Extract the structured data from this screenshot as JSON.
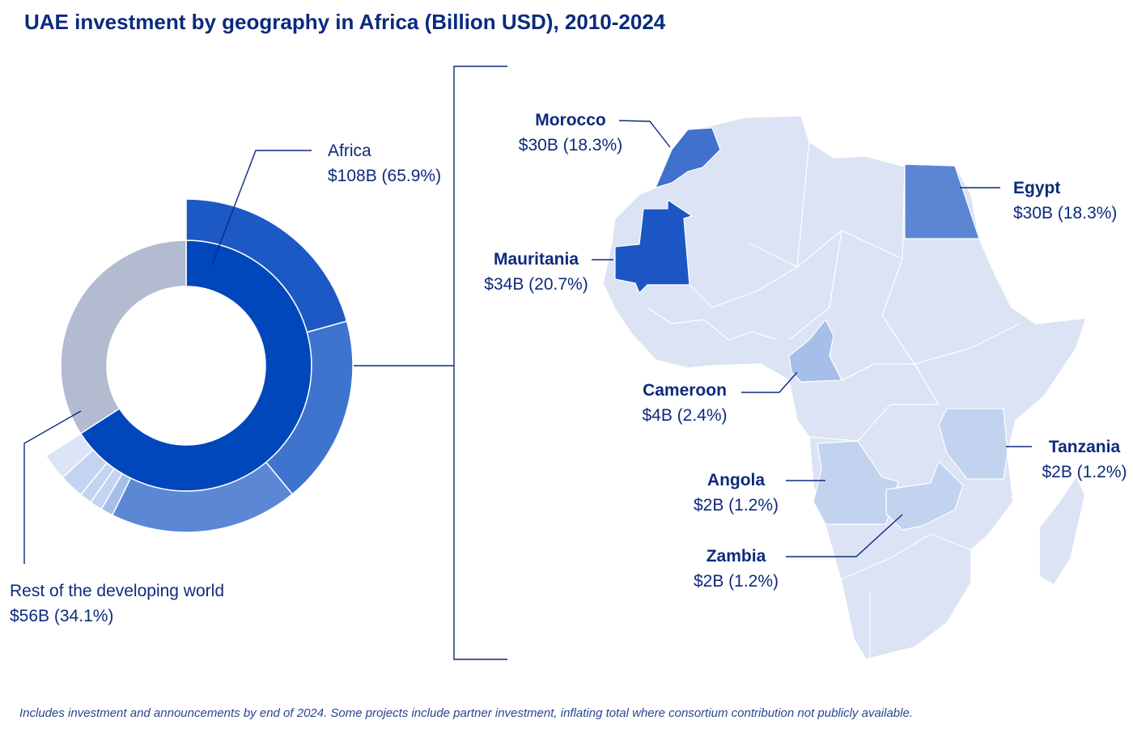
{
  "title": "UAE investment by geography in Africa (Billion USD), 2010-2024",
  "footnote": "Includes investment and announcements by end of 2024. Some projects include partner investment, inflating total where consortium contribution not publicly available.",
  "chart_data": [
    {
      "type": "pie",
      "variant": "sunburst",
      "inner_ring": [
        {
          "name": "Africa",
          "label": "$108B (65.9%)",
          "value": 108,
          "percent": 65.9,
          "color": "#0047bb"
        },
        {
          "name": "Rest of the developing world",
          "label": "$56B (34.1%)",
          "value": 56,
          "percent": 34.1,
          "color": "#b2bbd0"
        }
      ],
      "outer_ring": [
        {
          "name": "Mauritania",
          "percent": 20.7,
          "color": "#1d59c4"
        },
        {
          "name": "Morocco",
          "percent": 18.3,
          "color": "#3e74ce"
        },
        {
          "name": "Egypt",
          "percent": 18.3,
          "color": "#5b87d5"
        },
        {
          "name": "Tanzania",
          "percent": 1.2,
          "color": "#a5bfe9"
        },
        {
          "name": "Angola",
          "percent": 1.2,
          "color": "#c3d4f1"
        },
        {
          "name": "Zambia",
          "percent": 1.2,
          "color": "#c3d4f1"
        },
        {
          "name": "Cameroon",
          "percent": 2.4,
          "color": "#c3d4f1"
        },
        {
          "percent": 2.6,
          "color": "#dbe5f7"
        }
      ]
    },
    {
      "type": "choropleth-map",
      "base_color": "#dbe3f4",
      "countries": [
        {
          "name": "Morocco",
          "label": "$30B (18.3%)",
          "value": 30,
          "percent": 18.3,
          "color": "#4071cc"
        },
        {
          "name": "Egypt",
          "label": "$30B (18.3%)",
          "value": 30,
          "percent": 18.3,
          "color": "#5a86d4"
        },
        {
          "name": "Mauritania",
          "label": "$34B (20.7%)",
          "value": 34,
          "percent": 20.7,
          "color": "#1b56c4"
        },
        {
          "name": "Cameroon",
          "label": "$4B (2.4%)",
          "value": 4,
          "percent": 2.4,
          "color": "#a5bfe8"
        },
        {
          "name": "Tanzania",
          "label": "$2B (1.2%)",
          "value": 2,
          "percent": 1.2,
          "color": "#c2d3f0"
        },
        {
          "name": "Angola",
          "label": "$2B (1.2%)",
          "value": 2,
          "percent": 1.2,
          "color": "#c2d3f0"
        },
        {
          "name": "Zambia",
          "label": "$2B (1.2%)",
          "value": 2,
          "percent": 1.2,
          "color": "#c2d3f0"
        }
      ]
    }
  ]
}
